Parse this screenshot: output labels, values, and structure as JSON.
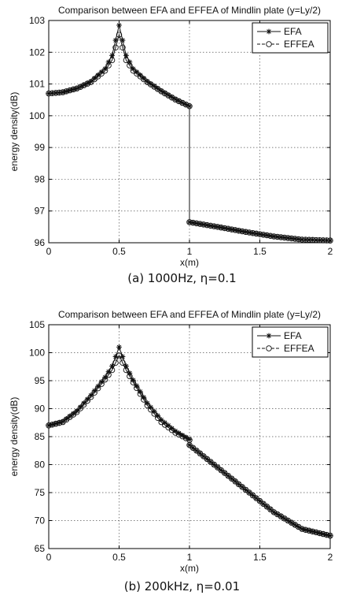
{
  "chart_data": [
    {
      "type": "line",
      "title": "Comparison between EFA and EFFEA of Mindlin plate (y=Ly/2)",
      "xlabel": "x(m)",
      "ylabel": "energy density(dB)",
      "xlim": [
        0,
        2
      ],
      "ylim": [
        96,
        103
      ],
      "xticks": [
        "0",
        "0.5",
        "1",
        "1.5",
        "2"
      ],
      "yticks": [
        "96",
        "97",
        "98",
        "99",
        "100",
        "101",
        "102",
        "103"
      ],
      "grid": true,
      "legend_position": "top-right",
      "caption": "(a) 1000Hz, η=0.1",
      "series": [
        {
          "name": "EFA",
          "marker": "star",
          "x": [
            0,
            0.1,
            0.2,
            0.3,
            0.4,
            0.45,
            0.5,
            0.55,
            0.6,
            0.7,
            0.8,
            0.9,
            1.0,
            1.0,
            1.2,
            1.4,
            1.6,
            1.8,
            2.0
          ],
          "y": [
            100.7,
            100.74,
            100.86,
            101.08,
            101.48,
            101.9,
            102.85,
            101.9,
            101.48,
            101.08,
            100.78,
            100.52,
            100.3,
            96.65,
            96.5,
            96.34,
            96.2,
            96.1,
            96.07
          ]
        },
        {
          "name": "EFFEA",
          "marker": "circle",
          "x": [
            0,
            0.1,
            0.2,
            0.3,
            0.4,
            0.45,
            0.5,
            0.55,
            0.6,
            0.7,
            0.8,
            0.9,
            1.0,
            1.0,
            1.2,
            1.4,
            1.6,
            1.8,
            2.0
          ],
          "y": [
            100.7,
            100.74,
            100.86,
            101.06,
            101.42,
            101.75,
            102.55,
            101.75,
            101.42,
            101.06,
            100.77,
            100.51,
            100.3,
            96.65,
            96.5,
            96.34,
            96.2,
            96.1,
            96.07
          ]
        }
      ]
    },
    {
      "type": "line",
      "title": "Comparison between EFA and EFFEA of Mindlin plate (y=Ly/2)",
      "xlabel": "x(m)",
      "ylabel": "energy density(dB)",
      "xlim": [
        0,
        2
      ],
      "ylim": [
        65,
        105
      ],
      "xticks": [
        "0",
        "0.5",
        "1",
        "1.5",
        "2"
      ],
      "yticks": [
        "65",
        "70",
        "75",
        "80",
        "85",
        "90",
        "95",
        "100",
        "105"
      ],
      "grid": true,
      "legend_position": "top-right",
      "caption": "(b) 200kHz, η=0.01",
      "series": [
        {
          "name": "EFA",
          "marker": "star",
          "x": [
            0,
            0.1,
            0.2,
            0.3,
            0.4,
            0.45,
            0.5,
            0.55,
            0.6,
            0.7,
            0.8,
            0.9,
            1.0,
            1.0,
            1.2,
            1.4,
            1.6,
            1.8,
            2.0
          ],
          "y": [
            87.0,
            87.7,
            89.6,
            92.4,
            95.6,
            97.6,
            101.0,
            97.6,
            95.1,
            91.0,
            88.0,
            86.0,
            84.5,
            83.5,
            79.5,
            75.5,
            71.5,
            68.5,
            67.3
          ]
        },
        {
          "name": "EFFEA",
          "marker": "circle",
          "x": [
            0,
            0.1,
            0.2,
            0.3,
            0.4,
            0.45,
            0.5,
            0.55,
            0.6,
            0.7,
            0.8,
            0.9,
            1.0,
            1.0,
            1.2,
            1.4,
            1.6,
            1.8,
            2.0
          ],
          "y": [
            87.0,
            87.6,
            89.4,
            92.1,
            95.2,
            96.9,
            99.5,
            96.9,
            94.7,
            90.6,
            87.6,
            85.7,
            84.4,
            83.5,
            79.5,
            75.5,
            71.5,
            68.5,
            67.3
          ]
        }
      ]
    }
  ]
}
